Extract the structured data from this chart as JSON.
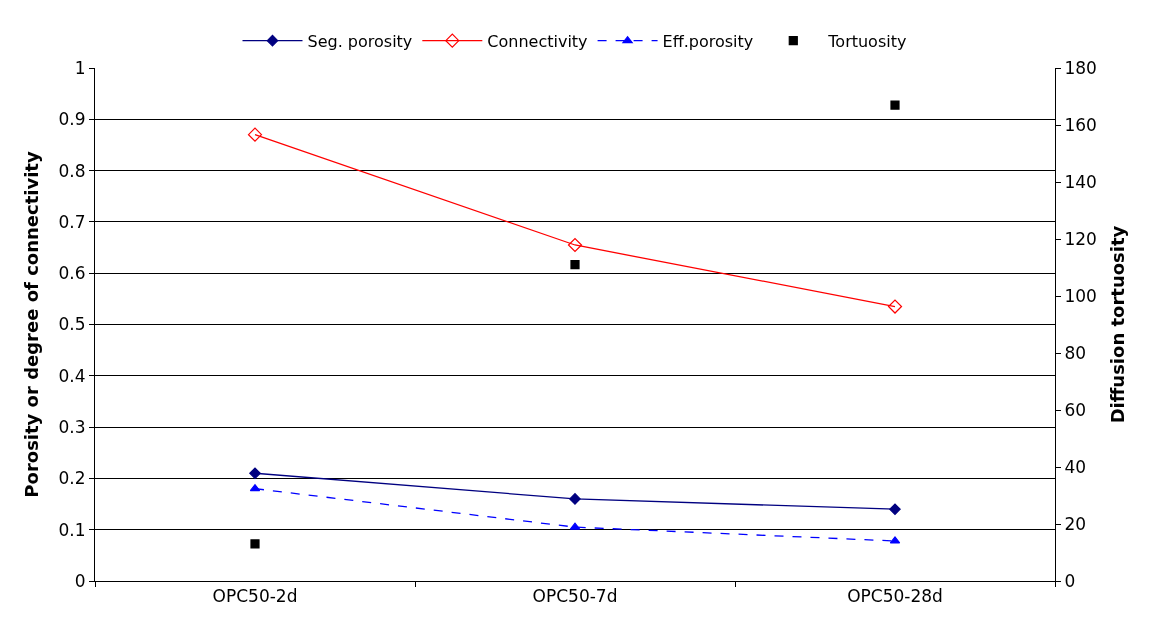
{
  "chart_data": {
    "type": "line",
    "ylabel": "Porosity or degree of connectivity",
    "y2label": "Diffusion tortuosity",
    "categories": [
      "OPC50-2d",
      "OPC50-7d",
      "OPC50-28d"
    ],
    "series": [
      {
        "name": "Seg. porosity",
        "color": "#000080",
        "values": [
          0.21,
          0.16,
          0.14
        ],
        "marker": "diamond",
        "line_style": "solid"
      },
      {
        "name": "Connectivity",
        "color": "#ff0000",
        "values": [
          0.87,
          0.655,
          0.535
        ],
        "marker": "diamond-open",
        "line_style": "solid"
      },
      {
        "name": "Eff.porosity",
        "color": "#0000ff",
        "values": [
          0.18,
          0.105,
          0.078
        ],
        "marker": "triangle",
        "line_style": "dashed"
      },
      {
        "name": "Tortuosity",
        "color": "#000000",
        "values": [
          13,
          111,
          167
        ],
        "type": "scatter",
        "marker": "square",
        "axis": "y2"
      }
    ],
    "ylim": [
      0,
      1
    ],
    "yticks": [
      0,
      0.1,
      0.2,
      0.3,
      0.4,
      0.5,
      0.6,
      0.7,
      0.8,
      0.9,
      1
    ],
    "y2lim": [
      0,
      180
    ],
    "y2ticks": [
      0,
      20,
      40,
      60,
      80,
      100,
      120,
      140,
      160,
      180
    ],
    "grid": "y",
    "legend": "top"
  }
}
